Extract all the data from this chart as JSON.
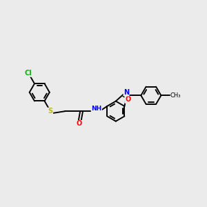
{
  "background_color": "#ebebeb",
  "bond_color": "#000000",
  "atom_colors": {
    "Cl": "#00bb00",
    "S": "#bbbb00",
    "O": "#ff0000",
    "N": "#0000ff"
  },
  "figsize": [
    3.0,
    3.0
  ],
  "dpi": 100,
  "lw": 1.4,
  "font": 7.0
}
